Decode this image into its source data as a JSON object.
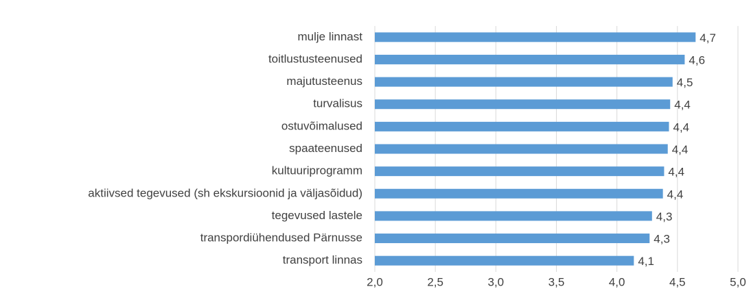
{
  "chart_data": {
    "type": "barh",
    "categories": [
      "mulje linnast",
      "toitlustusteenused",
      "majutusteenus",
      "turvalisus",
      "ostuvõimalused",
      "spaateenused",
      "kultuuriprogramm",
      "aktiivsed tegevused (sh ekskursioonid ja väljasõidud)",
      "tegevused lastele",
      "transpordiühendused Pärnusse",
      "transport linnas"
    ],
    "values": [
      4.65,
      4.56,
      4.46,
      4.44,
      4.43,
      4.42,
      4.39,
      4.38,
      4.29,
      4.27,
      4.14
    ],
    "value_labels": [
      "4,7",
      "4,6",
      "4,5",
      "4,4",
      "4,4",
      "4,4",
      "4,4",
      "4,4",
      "4,3",
      "4,3",
      "4,1"
    ],
    "color": "#5b9bd5",
    "xlim": [
      2,
      5
    ],
    "xticks": [
      {
        "value": 2,
        "label": "2,0"
      },
      {
        "value": 2.5,
        "label": "2,5"
      },
      {
        "value": 3,
        "label": "3,0"
      },
      {
        "value": 3.5,
        "label": "3,5"
      },
      {
        "value": 4,
        "label": "4,0"
      },
      {
        "value": 4.5,
        "label": "4,5"
      },
      {
        "value": 5,
        "label": "5,0"
      }
    ],
    "grid": true
  }
}
